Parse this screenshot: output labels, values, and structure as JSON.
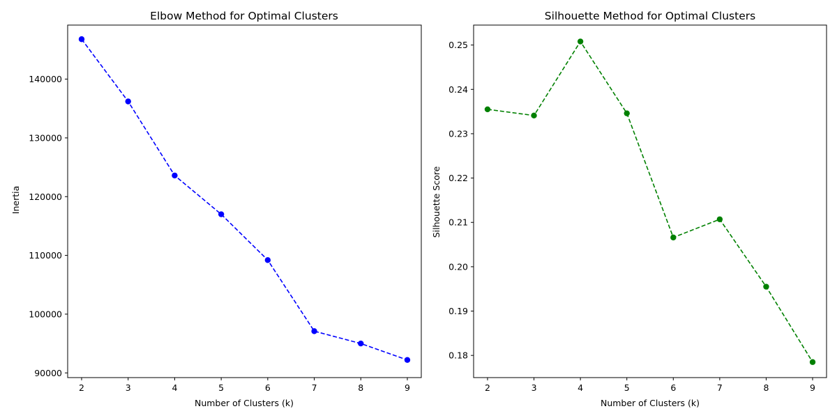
{
  "chart_data": [
    {
      "type": "line",
      "title": "Elbow Method for Optimal Clusters",
      "xlabel": "Number of Clusters (k)",
      "ylabel": "Inertia",
      "x": [
        2,
        3,
        4,
        5,
        6,
        7,
        8,
        9
      ],
      "xlim": [
        1.7,
        9.3
      ],
      "ylim": [
        89200,
        149200
      ],
      "xticks": [
        2,
        3,
        4,
        5,
        6,
        7,
        8,
        9
      ],
      "yticks": [
        90000,
        100000,
        110000,
        120000,
        130000,
        140000
      ],
      "grid": false,
      "series": [
        {
          "values": [
            146800,
            136200,
            123600,
            117000,
            109200,
            97100,
            95000,
            92200
          ],
          "color": "#0000ff",
          "line_style": "dashed",
          "marker": "circle"
        }
      ]
    },
    {
      "type": "line",
      "title": "Silhouette Method for Optimal Clusters",
      "xlabel": "Number of Clusters (k)",
      "ylabel": "Silhouette Score",
      "x": [
        2,
        3,
        4,
        5,
        6,
        7,
        8,
        9
      ],
      "xlim": [
        1.7,
        9.3
      ],
      "ylim": [
        0.175,
        0.2545
      ],
      "xticks": [
        2,
        3,
        4,
        5,
        6,
        7,
        8,
        9
      ],
      "yticks": [
        0.18,
        0.19,
        0.2,
        0.21,
        0.22,
        0.23,
        0.24,
        0.25
      ],
      "ytick_labels": [
        "0.18",
        "0.19",
        "0.20",
        "0.21",
        "0.22",
        "0.23",
        "0.24",
        "0.25"
      ],
      "grid": false,
      "series": [
        {
          "values": [
            0.2355,
            0.2341,
            0.2508,
            0.2346,
            0.2066,
            0.2107,
            0.1955,
            0.1785
          ],
          "color": "#008000",
          "line_style": "dashed",
          "marker": "circle"
        }
      ]
    }
  ]
}
